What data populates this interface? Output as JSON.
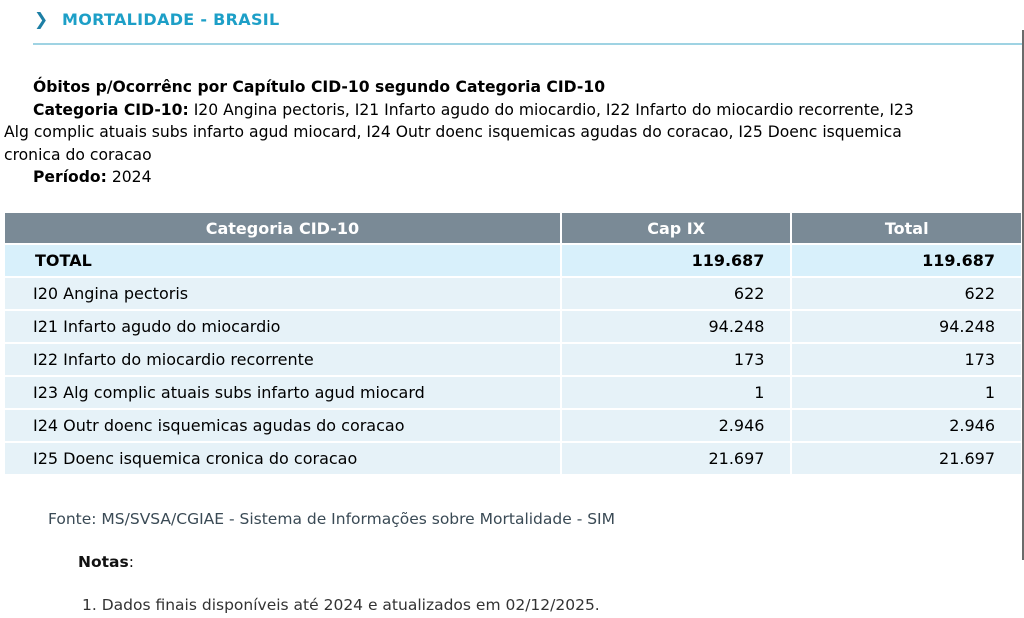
{
  "header": {
    "title": "MORTALIDADE - BRASIL",
    "icon": "chevron-right-icon",
    "accent_color": "#1d9fc7"
  },
  "description": {
    "title": "Óbitos p/Ocorrênc por Capítulo CID-10 segundo Categoria CID-10",
    "category_label": "Categoria CID-10:",
    "category_value_line1": " I20 Angina pectoris, I21 Infarto agudo do miocardio, I22 Infarto do miocardio recorrente, I23",
    "category_value_line2": "Alg complic atuais subs infarto agud miocard, I24 Outr doenc isquemicas agudas do coracao, I25 Doenc isquemica",
    "category_value_line3": "cronica do coracao",
    "period_label": "Período:",
    "period_value": " 2024"
  },
  "table": {
    "header_color": "#7a8a96",
    "row_color": "#e6f2f8",
    "columns": [
      "Categoria CID-10",
      "Cap IX",
      "Total"
    ],
    "total_row": {
      "category": "TOTAL",
      "cap_ix": "119.687",
      "total": "119.687"
    },
    "rows": [
      {
        "category": "I20 Angina pectoris",
        "cap_ix": "622",
        "total": "622"
      },
      {
        "category": "I21 Infarto agudo do miocardio",
        "cap_ix": "94.248",
        "total": "94.248"
      },
      {
        "category": "I22 Infarto do miocardio recorrente",
        "cap_ix": "173",
        "total": "173"
      },
      {
        "category": "I23 Alg complic atuais subs infarto agud miocard",
        "cap_ix": "1",
        "total": "1"
      },
      {
        "category": "I24 Outr doenc isquemicas agudas do coracao",
        "cap_ix": "2.946",
        "total": "2.946"
      },
      {
        "category": "I25 Doenc isquemica cronica do coracao",
        "cap_ix": "21.697",
        "total": "21.697"
      }
    ]
  },
  "source": "Fonte: MS/SVSA/CGIAE - Sistema de Informações sobre Mortalidade - SIM",
  "notes": {
    "title": "Notas",
    "title_suffix": ":",
    "items": [
      "1. Dados finais disponíveis até 2024 e atualizados em 02/12/2025."
    ]
  }
}
